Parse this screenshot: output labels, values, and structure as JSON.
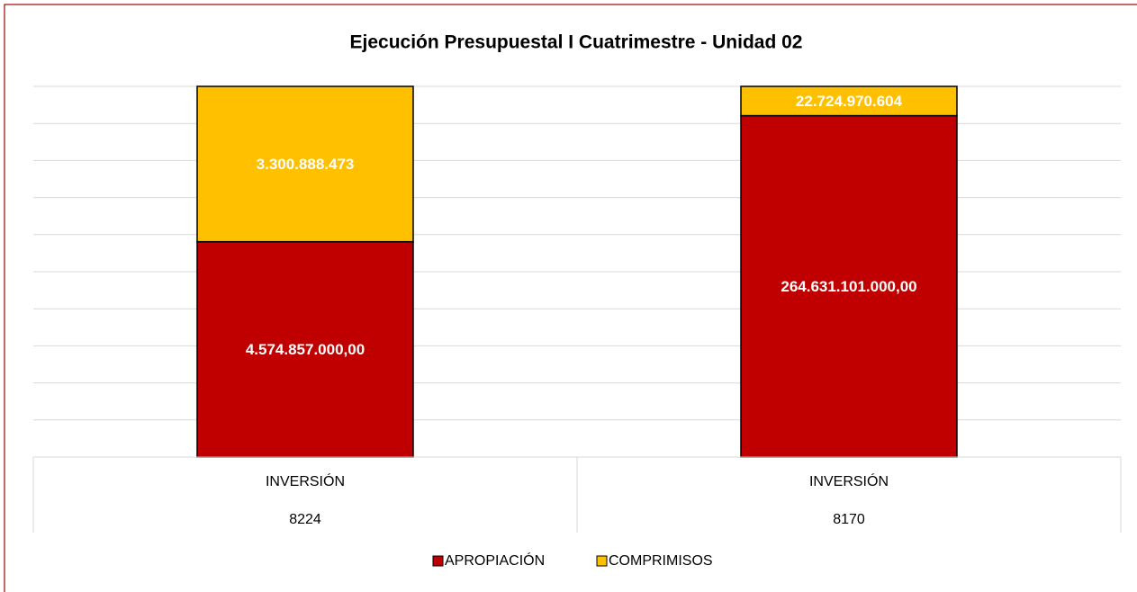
{
  "chart_data": {
    "type": "bar",
    "stacking": "percent",
    "title": "Ejecución Presupuestal I Cuatrimestre - Unidad 02",
    "categories": [
      "INVERSIÓN",
      "INVERSIÓN"
    ],
    "category_groups": [
      "8224",
      "8170"
    ],
    "series": [
      {
        "name": "APROPIACIÓN",
        "color": "#c00000",
        "values": [
          4574857000,
          264631101000
        ],
        "value_labels": [
          "4.574.857.000,00",
          "264.631.101.000,00"
        ]
      },
      {
        "name": "COMPRIMISOS",
        "color": "#ffc000",
        "values": [
          3300888473,
          22724970604
        ],
        "value_labels": [
          "3.300.888.473",
          "22.724.970.604"
        ]
      }
    ],
    "ylim": [
      0,
      100
    ],
    "yticks": [
      0,
      10,
      20,
      30,
      40,
      50,
      60,
      70,
      80,
      90,
      100
    ],
    "grid": true,
    "legend": "bottom"
  }
}
